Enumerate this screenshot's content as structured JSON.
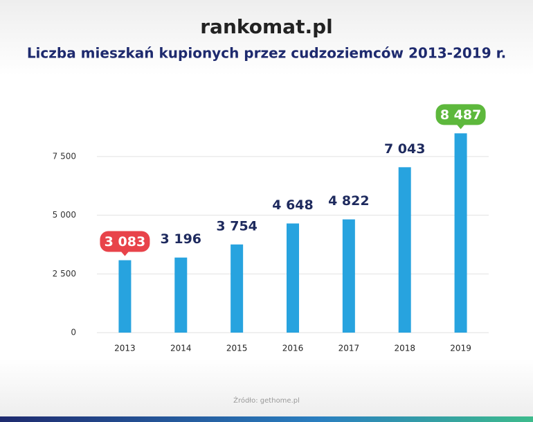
{
  "logo": "rankomat.pl",
  "chart_data": {
    "type": "bar",
    "title": "Liczba mieszkań kupionych przez cudzoziemców 2013-2019 r.",
    "source": "Źródło: gethome.pl",
    "categories": [
      "2013",
      "2014",
      "2015",
      "2016",
      "2017",
      "2018",
      "2019"
    ],
    "values": [
      3083,
      3196,
      3754,
      4648,
      4822,
      7043,
      8487
    ],
    "value_labels": [
      "3 083",
      "3 196",
      "3 754",
      "4 648",
      "4 822",
      "7 043",
      "8 487"
    ],
    "label_backgrounds": [
      "#e8434a",
      null,
      null,
      null,
      null,
      null,
      "#5db83c"
    ],
    "color": "#27a3df",
    "ylim": [
      0,
      9000
    ],
    "yticks": [
      0,
      {
        "value": 2500,
        "label": "2 500"
      },
      {
        "value": 5000,
        "label": "5 000"
      },
      {
        "value": 7500,
        "label": "7 500"
      }
    ],
    "grid": true
  }
}
